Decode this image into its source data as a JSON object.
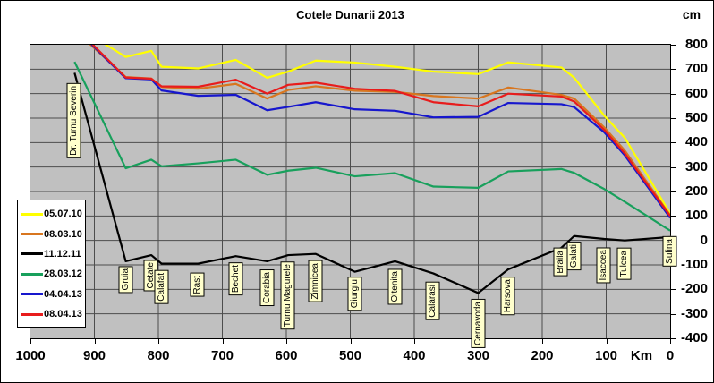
{
  "title": "Cotele Dunarii 2013",
  "y_axis": {
    "unit": "cm",
    "ticks": [
      800,
      700,
      600,
      500,
      400,
      300,
      200,
      100,
      0,
      -100,
      -200,
      -300,
      -400
    ]
  },
  "x_axis": {
    "unit": "Km",
    "ticks": [
      1000,
      900,
      800,
      700,
      600,
      500,
      400,
      300,
      200,
      100,
      0
    ]
  },
  "legend": {
    "position": "middle-left"
  },
  "colors": {
    "plot_background": "#c0c0c0",
    "gridline": "#4d4d4d",
    "station_label_bg": "#ffffcc",
    "figure_bg": "#ffffff"
  },
  "chart_data": {
    "type": "line",
    "title": "Cotele Dunarii 2013",
    "xlabel": "Km",
    "ylabel": "cm",
    "x_reversed": true,
    "xlim": [
      1000,
      0
    ],
    "ylim": [
      -400,
      800
    ],
    "grid": true,
    "stations": [
      {
        "name": "Dr. Turnu Severin",
        "km": 931,
        "label_y": 92
      },
      {
        "name": "Gruia",
        "km": 851,
        "label_y": 296
      },
      {
        "name": "Cetate",
        "km": 811,
        "label_y": 289
      },
      {
        "name": "Calafat",
        "km": 795,
        "label_y": 301
      },
      {
        "name": "Rast",
        "km": 738,
        "label_y": 304
      },
      {
        "name": "Bechet",
        "km": 679,
        "label_y": 292
      },
      {
        "name": "Corabia",
        "km": 630,
        "label_y": 300
      },
      {
        "name": "Turnu Magurele",
        "km": 597,
        "label_y": 291
      },
      {
        "name": "Zimnicea",
        "km": 554,
        "label_y": 290
      },
      {
        "name": "Giurgiu",
        "km": 493,
        "label_y": 308
      },
      {
        "name": "Oltenita",
        "km": 430,
        "label_y": 299
      },
      {
        "name": "Calarasi",
        "km": 370,
        "label_y": 314
      },
      {
        "name": "Cernavoda",
        "km": 300,
        "label_y": 333
      },
      {
        "name": "Harsova",
        "km": 253,
        "label_y": 308
      },
      {
        "name": "Braila",
        "km": 170,
        "label_y": 276
      },
      {
        "name": "Galati",
        "km": 150,
        "label_y": 269
      },
      {
        "name": "Isaccea",
        "km": 103,
        "label_y": 275
      },
      {
        "name": "Tulcea",
        "km": 71,
        "label_y": 276
      },
      {
        "name": "Sulina",
        "km": 0,
        "label_y": 263
      }
    ],
    "series": [
      {
        "name": "05.07.10",
        "color": "#ffff00",
        "values": [
          880,
          750,
          775,
          710,
          703,
          738,
          665,
          690,
          735,
          727,
          710,
          690,
          680,
          728,
          707,
          665,
          510,
          420,
          110
        ]
      },
      {
        "name": "08.03.10",
        "color": "#d8761f",
        "values": [
          860,
          668,
          662,
          627,
          620,
          640,
          580,
          615,
          630,
          612,
          607,
          590,
          580,
          625,
          595,
          580,
          462,
          368,
          103
        ]
      },
      {
        "name": "11.12.11",
        "color": "#000000",
        "values": [
          685,
          -85,
          -60,
          -95,
          -95,
          -64,
          -85,
          -60,
          -55,
          -128,
          -85,
          -135,
          -215,
          -118,
          -30,
          18,
          6,
          0,
          14
        ]
      },
      {
        "name": "28.03.12",
        "color": "#18a05c",
        "values": [
          730,
          295,
          330,
          303,
          315,
          330,
          268,
          285,
          297,
          262,
          275,
          220,
          215,
          282,
          292,
          276,
          210,
          158,
          40
        ]
      },
      {
        "name": "04.04.13",
        "color": "#1717cd",
        "values": [
          870,
          663,
          658,
          613,
          591,
          595,
          532,
          546,
          565,
          536,
          530,
          503,
          505,
          562,
          557,
          545,
          442,
          348,
          92
        ]
      },
      {
        "name": "08.04.13",
        "color": "#e81c1c",
        "values": [
          875,
          666,
          661,
          630,
          628,
          657,
          600,
          636,
          645,
          620,
          611,
          565,
          548,
          600,
          588,
          568,
          452,
          356,
          100
        ]
      }
    ]
  }
}
